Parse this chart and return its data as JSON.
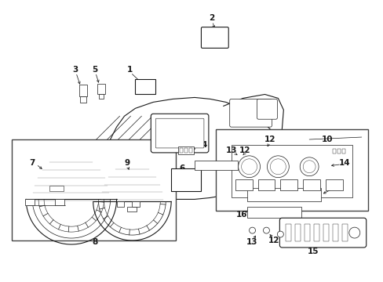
{
  "bg_color": "#ffffff",
  "line_color": "#1a1a1a",
  "fig_width": 4.89,
  "fig_height": 3.6,
  "dpi": 100,
  "border_color": "#888888",
  "gray_line": "#555555"
}
